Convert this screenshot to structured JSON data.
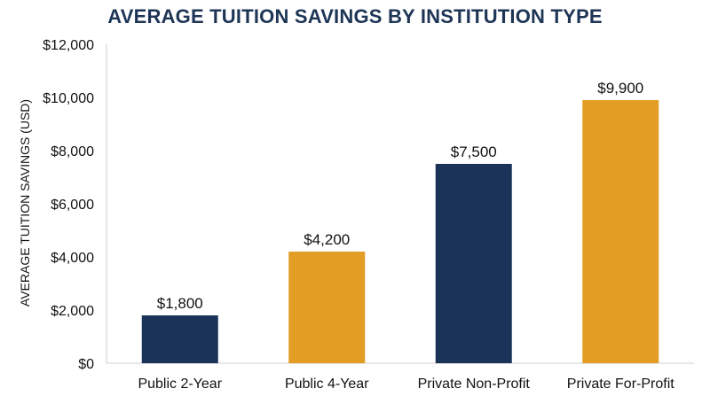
{
  "chart_data": {
    "type": "bar",
    "title": "AVERAGE TUITION SAVINGS BY INSTITUTION TYPE",
    "xlabel": "",
    "ylabel": "AVERAGE TUITION SAVINGS (USD)",
    "categories": [
      "Public 2-Year",
      "Public 4-Year",
      "Private Non-Profit",
      "Private For-Profit"
    ],
    "values": [
      1800,
      4200,
      7500,
      9900
    ],
    "value_labels": [
      "$1,800",
      "$4,200",
      "$7,500",
      "$9,900"
    ],
    "bar_colors": [
      "#1b3358",
      "#e39d24",
      "#1b3358",
      "#e39d24"
    ],
    "ylim": [
      0,
      12000
    ],
    "yticks": [
      0,
      2000,
      4000,
      6000,
      8000,
      10000,
      12000
    ],
    "ytick_labels": [
      "$0",
      "$2,000",
      "$4,000",
      "$6,000",
      "$8,000",
      "$10,000",
      "$12,000"
    ],
    "grid": false,
    "legend": "none"
  }
}
